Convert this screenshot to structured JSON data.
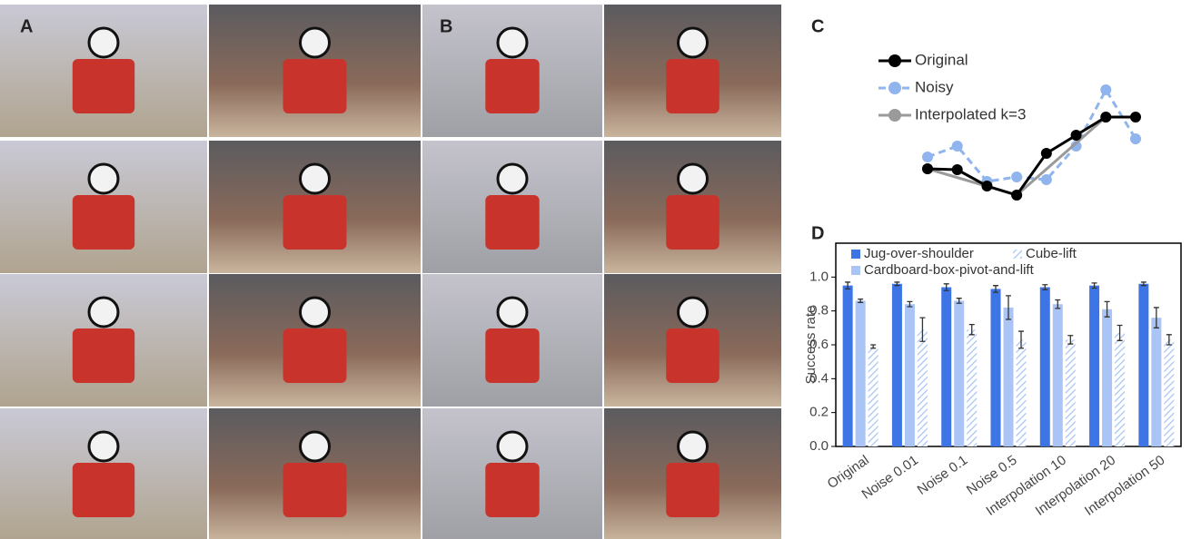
{
  "panel_labels": [
    "A",
    "B",
    "C",
    "D"
  ],
  "chart_data": [
    {
      "type": "line",
      "series": [
        {
          "name": "Original",
          "color": "#000000",
          "dash": false,
          "x": [
            0,
            1,
            2,
            3,
            4,
            5,
            6,
            7
          ],
          "values": [
            64,
            63,
            45,
            35,
            81,
            101,
            121,
            121
          ]
        },
        {
          "name": "Noisy",
          "color": "#8fb4ee",
          "dash": true,
          "x": [
            0,
            1,
            2,
            3,
            4,
            5,
            6,
            7
          ],
          "values": [
            77,
            89,
            50,
            55,
            52,
            89,
            151,
            97
          ]
        },
        {
          "name": "Interpolated k=3",
          "color": "#9a9a9a",
          "dash": false,
          "x": [
            0,
            3,
            6
          ],
          "values": [
            64,
            35,
            121
          ]
        }
      ]
    },
    {
      "type": "bar",
      "ylabel": "Success rate",
      "categories": [
        "Original",
        "Noise 0.01",
        "Noise 0.1",
        "Noise 0.5",
        "Interpolation 10",
        "Interpolation 20",
        "Interpolation 50"
      ],
      "ylim": [
        0,
        1.2
      ],
      "yticks": [
        {
          "value": 0,
          "label": "0.0"
        },
        {
          "value": 0.2,
          "label": "0.2"
        },
        {
          "value": 0.4,
          "label": "0.4"
        },
        {
          "value": 0.6,
          "label": "0.6"
        },
        {
          "value": 0.8,
          "label": "0.8"
        },
        {
          "value": 1,
          "label": "1.0"
        }
      ],
      "series": [
        {
          "name": "Jug-over-shoulder",
          "color": "#3d74e6",
          "hatch": false,
          "values": [
            0.95,
            0.96,
            0.94,
            0.93,
            0.94,
            0.95,
            0.96
          ],
          "errors": [
            0.02,
            0.01,
            0.02,
            0.02,
            0.015,
            0.015,
            0.01
          ]
        },
        {
          "name": "Cardboard-box-pivot-and-lift",
          "color": "#a9c4f5",
          "hatch": false,
          "values": [
            0.86,
            0.84,
            0.86,
            0.82,
            0.84,
            0.81,
            0.76
          ],
          "errors": [
            0.01,
            0.015,
            0.015,
            0.07,
            0.025,
            0.045,
            0.06
          ]
        },
        {
          "name": "Cube-lift",
          "color": "#a9c4f5",
          "hatch": true,
          "values": [
            0.59,
            0.69,
            0.69,
            0.63,
            0.63,
            0.67,
            0.63
          ],
          "errors": [
            0.01,
            0.07,
            0.03,
            0.05,
            0.025,
            0.045,
            0.03
          ]
        }
      ]
    }
  ]
}
